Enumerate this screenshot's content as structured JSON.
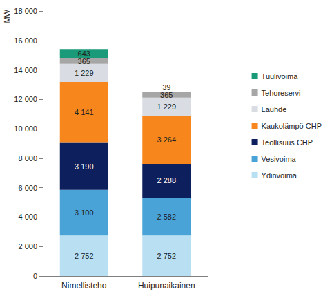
{
  "chart_data": {
    "type": "bar",
    "stacked": true,
    "data_labels": true,
    "grid": false,
    "legend": "right",
    "ylabel": "MW",
    "categories": [
      "Nimellisteho",
      "Huipunaikainen"
    ],
    "ylim": [
      0,
      18000
    ],
    "yticks": [
      0,
      {
        "value": 2000,
        "label": "2 000"
      },
      {
        "value": 4000,
        "label": "4 000"
      },
      {
        "value": 6000,
        "label": "6 000"
      },
      {
        "value": 8000,
        "label": "8 000"
      },
      {
        "value": 10000,
        "label": "10 000"
      },
      {
        "value": 12000,
        "label": "12 000"
      },
      {
        "value": 14000,
        "label": "14 000"
      },
      {
        "value": 16000,
        "label": "16 000"
      },
      {
        "value": 18000,
        "label": "18 000"
      }
    ],
    "series": [
      {
        "name": "Ydinvoima",
        "color": "#b9e0f2",
        "values": [
          2752,
          2752
        ],
        "value_labels": [
          "2 752",
          "2 752"
        ]
      },
      {
        "name": "Vesivoima",
        "color": "#4aa3d6",
        "values": [
          3100,
          2582
        ],
        "value_labels": [
          "3 100",
          "2 582"
        ]
      },
      {
        "name": "Teollisuus CHP",
        "color": "#0d1f5c",
        "values": [
          3190,
          2288
        ],
        "value_labels": [
          "3 190",
          "2 288"
        ]
      },
      {
        "name": "Kaukolämpö CHP",
        "color": "#f7861c",
        "values": [
          4141,
          3264
        ],
        "value_labels": [
          "4 141",
          "3 264"
        ]
      },
      {
        "name": "Lauhde",
        "color": "#d9dde3",
        "values": [
          1229,
          1229
        ],
        "value_labels": [
          "1 229",
          "1 229"
        ]
      },
      {
        "name": "Tehoreservi",
        "color": "#a6a6a6",
        "values": [
          365,
          365
        ],
        "value_labels": [
          "365",
          "365"
        ]
      },
      {
        "name": "Tuulivoima",
        "color": "#1a9a78",
        "values": [
          643,
          39
        ],
        "value_labels": [
          "643",
          "39"
        ]
      }
    ]
  }
}
